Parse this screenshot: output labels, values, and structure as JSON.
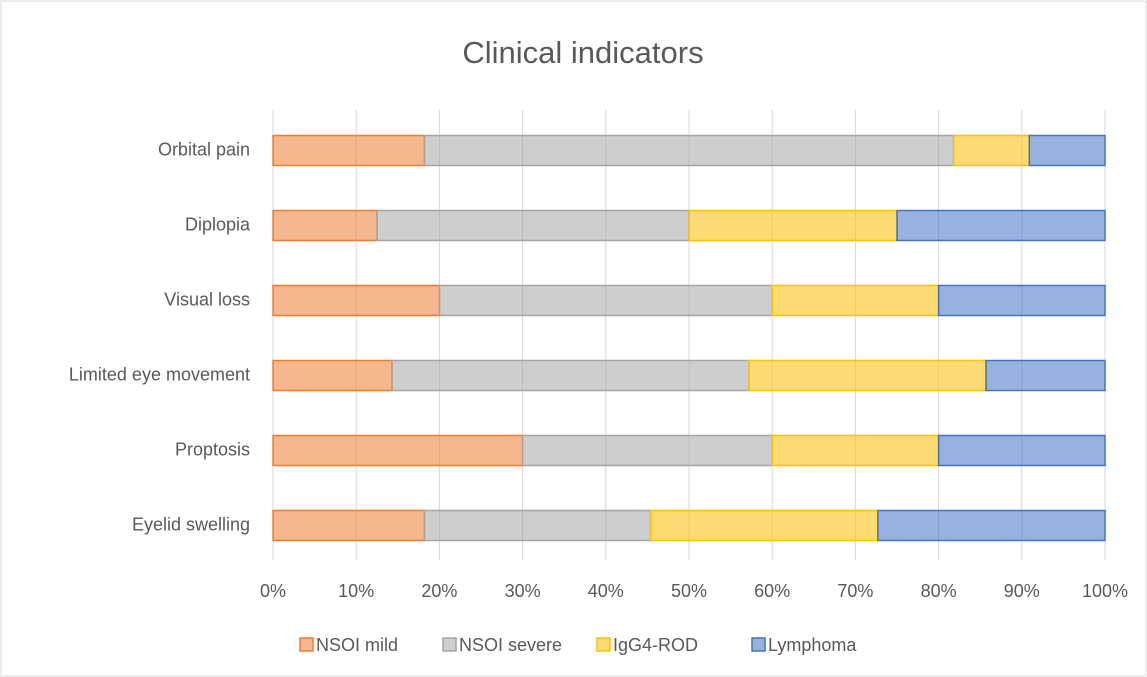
{
  "chart_data": {
    "type": "stacked-bar-horizontal",
    "title": "Clinical indicators",
    "categories": [
      "Orbital pain",
      "Diplopia",
      "Visual loss",
      "Limited eye movement",
      "Proptosis",
      "Eyelid swelling"
    ],
    "series": [
      {
        "name": "NSOI mild",
        "color": "#ed7d31",
        "values": [
          18.2,
          12.5,
          20,
          14.3,
          30,
          18.2
        ]
      },
      {
        "name": "NSOI severe",
        "color": "#a5a5a5",
        "values": [
          63.6,
          37.5,
          40,
          42.9,
          30,
          27.2
        ]
      },
      {
        "name": "IgG4-ROD",
        "color": "#ffc000",
        "values": [
          9.1,
          25,
          20,
          28.5,
          20,
          27.3
        ]
      },
      {
        "name": "Lymphoma",
        "color": "#4472c4",
        "values": [
          9.1,
          25,
          20,
          14.3,
          20,
          27.3
        ]
      }
    ],
    "xlim": [
      0,
      100
    ],
    "xticks": [
      {
        "value": 0,
        "label": "0%"
      },
      {
        "value": 10,
        "label": "10%"
      },
      {
        "value": 20,
        "label": "20%"
      },
      {
        "value": 30,
        "label": "30%"
      },
      {
        "value": 40,
        "label": "40%"
      },
      {
        "value": 50,
        "label": "50%"
      },
      {
        "value": 60,
        "label": "60%"
      },
      {
        "value": 70,
        "label": "70%"
      },
      {
        "value": 80,
        "label": "80%"
      },
      {
        "value": 90,
        "label": "90%"
      },
      {
        "value": 100,
        "label": "100%"
      }
    ],
    "grid": true,
    "legend": "bottom"
  }
}
